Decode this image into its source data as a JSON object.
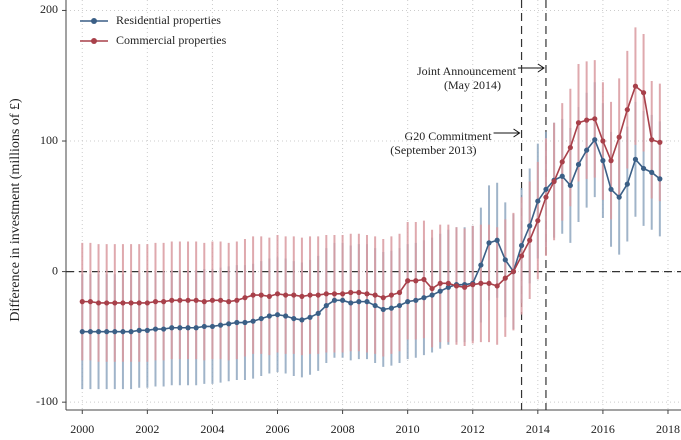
{
  "chart_data": {
    "type": "line_errorbar",
    "y_label": "Difference in investment (millions of £)",
    "xlim": [
      1999.5,
      2018.4
    ],
    "ylim": [
      -106,
      208
    ],
    "xticks": [
      2000,
      2002,
      2004,
      2006,
      2008,
      2010,
      2012,
      2014,
      2016,
      2018
    ],
    "yticks": [
      -100,
      0,
      100,
      200
    ],
    "grid": true,
    "legend": "top-left",
    "hline": 0,
    "x": [
      2000,
      2000.25,
      2000.5,
      2000.75,
      2001,
      2001.25,
      2001.5,
      2001.75,
      2002,
      2002.25,
      2002.5,
      2002.75,
      2003,
      2003.25,
      2003.5,
      2003.75,
      2004,
      2004.25,
      2004.5,
      2004.75,
      2005,
      2005.25,
      2005.5,
      2005.75,
      2006,
      2006.25,
      2006.5,
      2006.75,
      2007,
      2007.25,
      2007.5,
      2007.75,
      2008,
      2008.25,
      2008.5,
      2008.75,
      2009,
      2009.25,
      2009.5,
      2009.75,
      2010,
      2010.25,
      2010.5,
      2010.75,
      2011,
      2011.25,
      2011.5,
      2011.75,
      2012,
      2012.25,
      2012.5,
      2012.75,
      2013,
      2013.25,
      2013.5,
      2013.75,
      2014,
      2014.25,
      2014.5,
      2014.75,
      2015,
      2015.25,
      2015.5,
      2015.75,
      2016,
      2016.25,
      2016.5,
      2016.75,
      2017,
      2017.25,
      2017.5,
      2017.75
    ],
    "series": [
      {
        "name": "Residential properties",
        "color": "#3b5f86",
        "bar_color": "#8fa7bf",
        "values": [
          -46,
          -46,
          -46,
          -46,
          -46,
          -46,
          -46,
          -45,
          -45,
          -44,
          -44,
          -43,
          -43,
          -43,
          -43,
          -42,
          -42,
          -41,
          -40,
          -39,
          -39,
          -38,
          -36,
          -34,
          -33,
          -34,
          -36,
          -37,
          -35,
          -32,
          -26,
          -22,
          -22,
          -24,
          -23,
          -23,
          -26,
          -29,
          -28,
          -26,
          -23,
          -22,
          -20,
          -18,
          -15,
          -12,
          -10,
          -10,
          -9,
          5,
          22,
          24,
          9,
          0,
          20,
          35,
          54,
          63,
          70,
          73,
          66,
          82,
          93,
          101,
          85,
          63,
          57,
          67,
          86,
          79,
          76,
          71
        ],
        "errors": [
          44,
          44,
          44,
          44,
          44,
          44,
          44,
          44,
          44,
          44,
          44,
          44,
          44,
          44,
          44,
          44,
          44,
          44,
          44,
          44,
          44,
          44,
          44,
          44,
          44,
          44,
          44,
          44,
          44,
          44,
          44,
          44,
          44,
          44,
          44,
          44,
          44,
          44,
          44,
          44,
          44,
          44,
          44,
          44,
          44,
          44,
          44,
          44,
          44,
          44,
          44,
          44,
          44,
          44,
          44,
          44,
          44,
          44,
          44,
          44,
          44,
          44,
          44,
          44,
          44,
          44,
          44,
          44,
          44,
          44,
          44,
          44
        ]
      },
      {
        "name": "Commercial properties",
        "color": "#a8404a",
        "bar_color": "#d99aa0",
        "values": [
          -23,
          -23,
          -24,
          -24,
          -24,
          -24,
          -24,
          -24,
          -24,
          -23,
          -23,
          -22,
          -22,
          -22,
          -22,
          -23,
          -22,
          -22,
          -23,
          -22,
          -20,
          -18,
          -18,
          -19,
          -17,
          -18,
          -18,
          -19,
          -18,
          -18,
          -17,
          -17,
          -17,
          -16,
          -16,
          -17,
          -18,
          -20,
          -18,
          -16,
          -7,
          -7,
          -6,
          -13,
          -9,
          -9,
          -11,
          -12,
          -10,
          -9,
          -9,
          -11,
          -5,
          0,
          12,
          24,
          39,
          57,
          69,
          84,
          95,
          114,
          116,
          117,
          100,
          85,
          103,
          124,
          142,
          137,
          101,
          99
        ],
        "errors": [
          45,
          45,
          45,
          45,
          45,
          45,
          45,
          45,
          45,
          45,
          45,
          45,
          45,
          45,
          45,
          45,
          45,
          45,
          45,
          45,
          45,
          45,
          45,
          45,
          45,
          45,
          45,
          45,
          45,
          45,
          45,
          45,
          45,
          45,
          45,
          45,
          45,
          45,
          45,
          45,
          45,
          45,
          45,
          45,
          45,
          45,
          45,
          45,
          45,
          45,
          45,
          45,
          45,
          45,
          45,
          45,
          45,
          45,
          45,
          45,
          45,
          45,
          45,
          45,
          45,
          45,
          45,
          45,
          45,
          45,
          45,
          45
        ]
      }
    ],
    "annotations": [
      {
        "x": 2014.25,
        "lines": [
          "Joint Announcement",
          "(May 2014)"
        ],
        "y": 68
      },
      {
        "x": 2013.5,
        "lines": [
          "G20 Commitment",
          "(September 2013)"
        ],
        "y": 133
      }
    ]
  }
}
